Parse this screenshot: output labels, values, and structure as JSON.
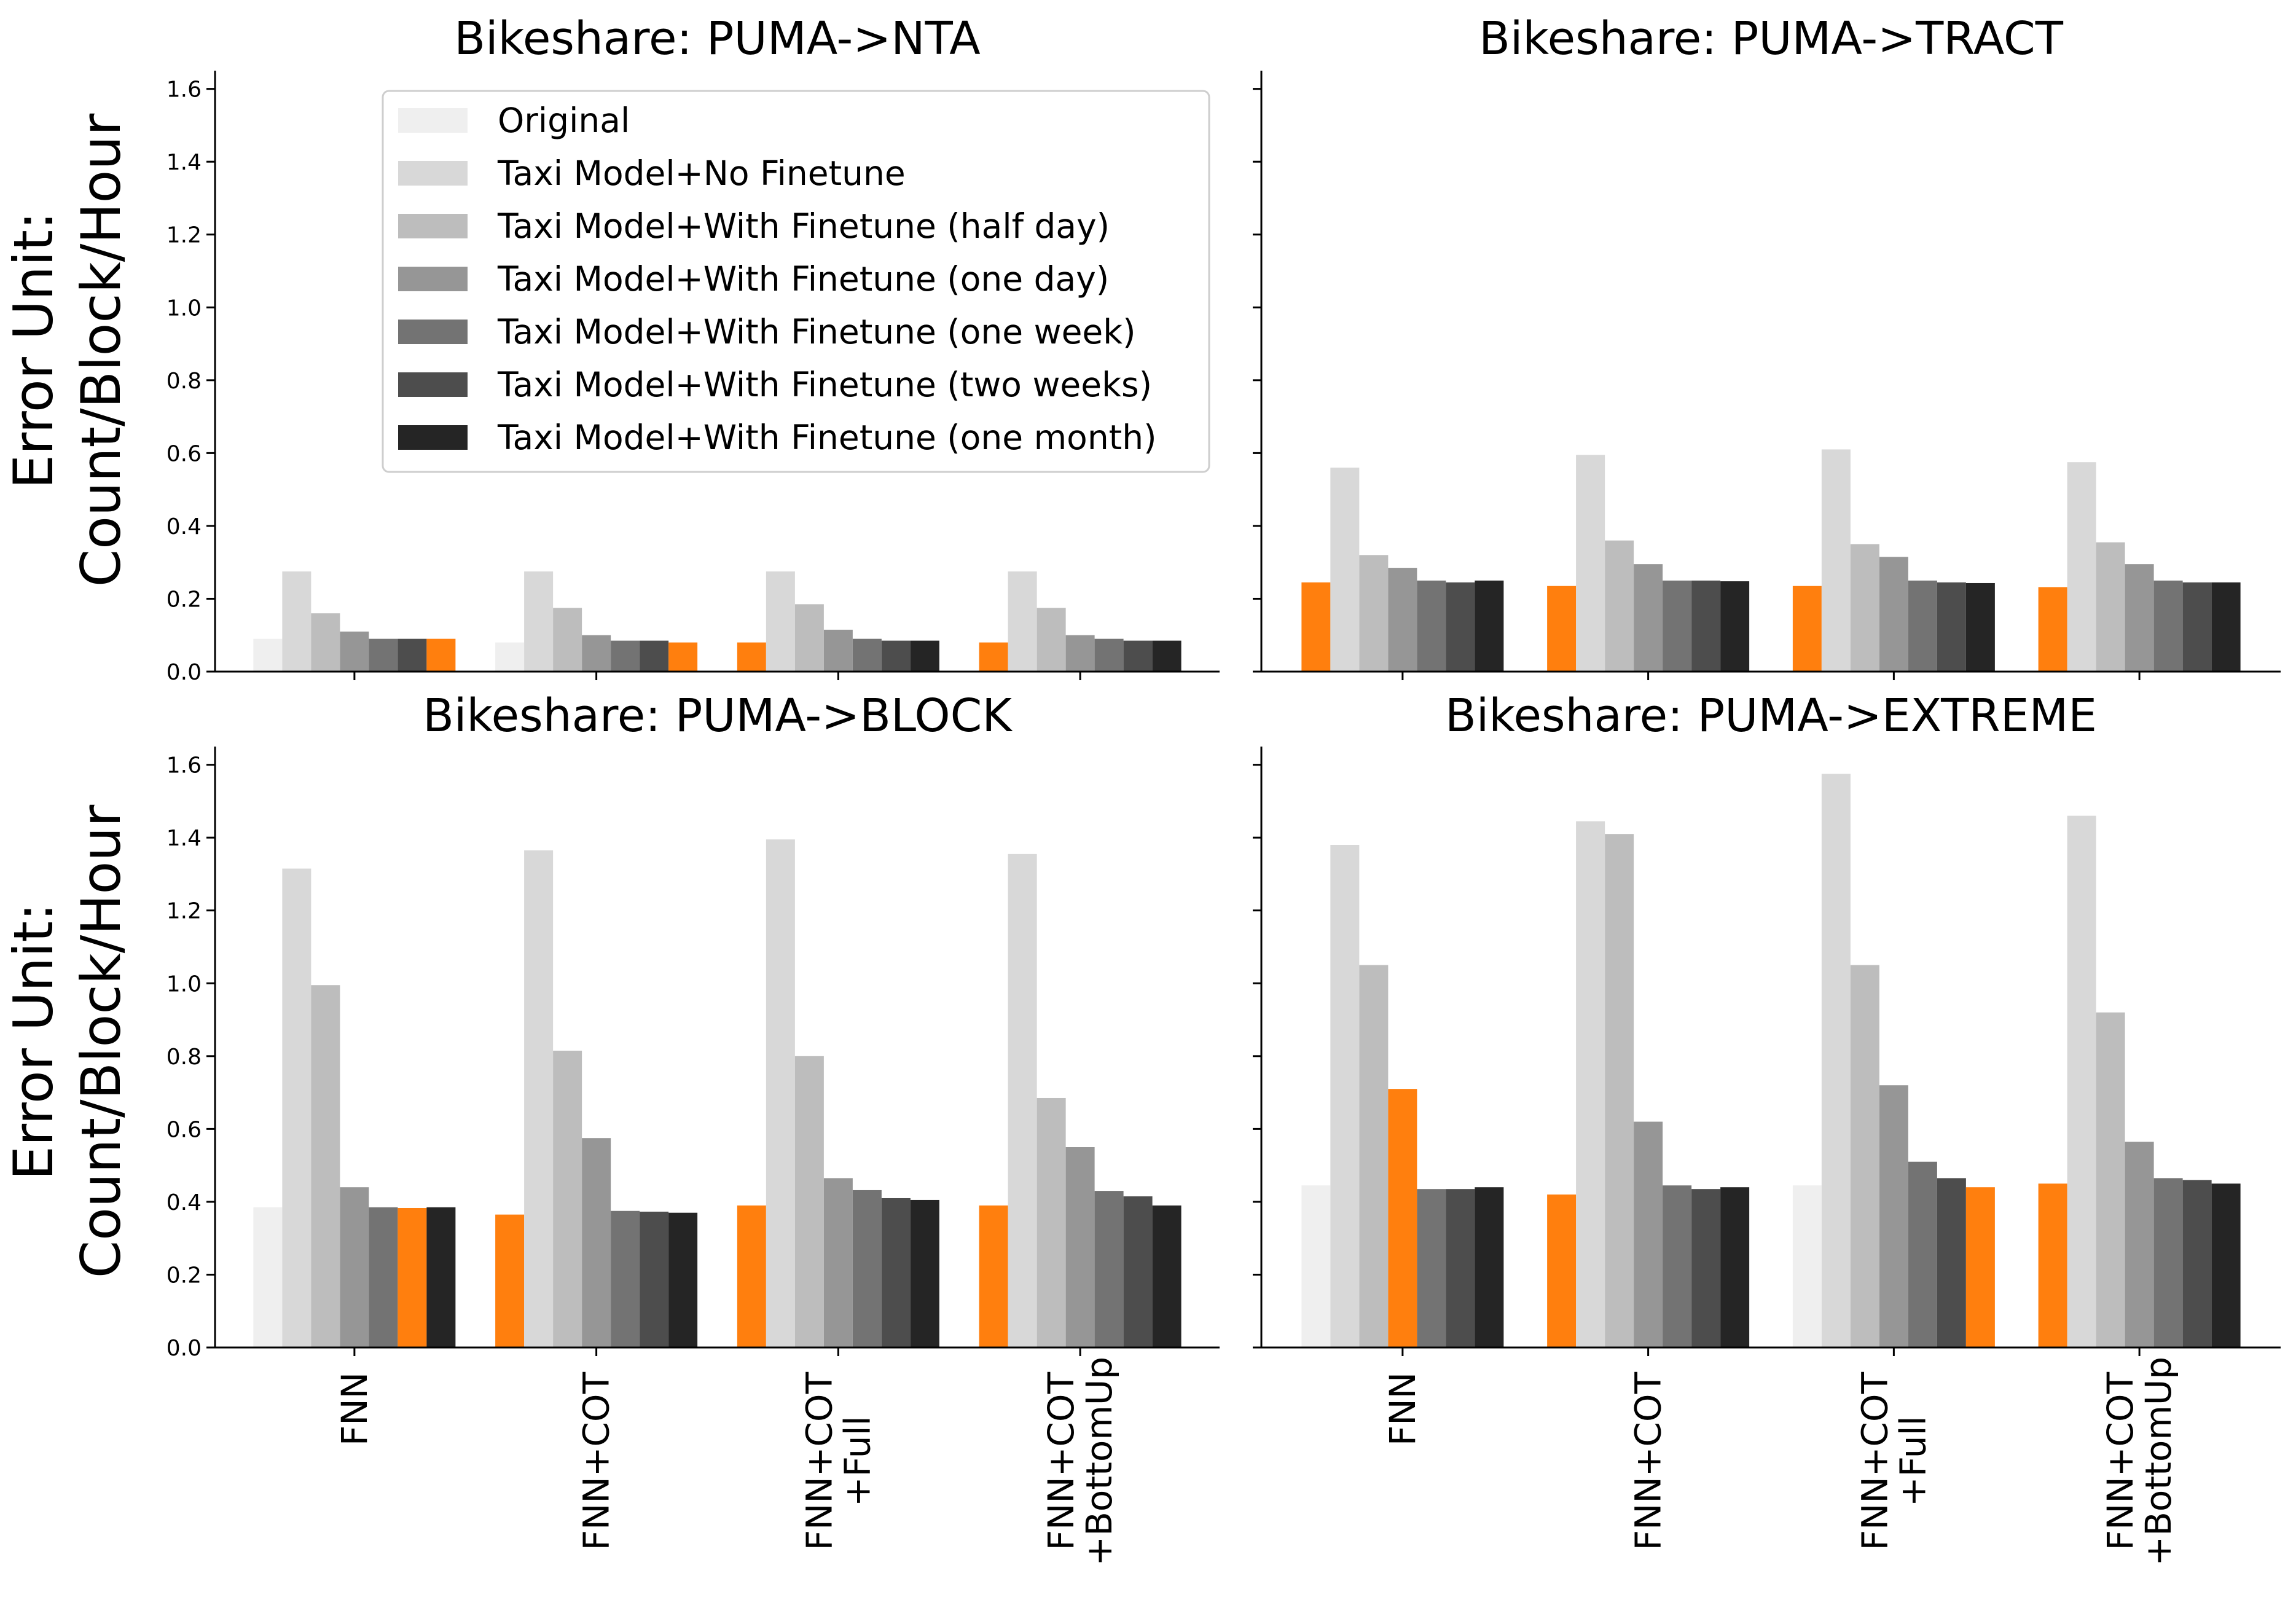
{
  "figure": {
    "ylabel_line1": "Error Unit:",
    "ylabel_line2": "Count/Block/Hour"
  },
  "legend": [
    {
      "label": "Original",
      "color": "#efefef"
    },
    {
      "label": "Taxi Model+No Finetune",
      "color": "#d8d8d8"
    },
    {
      "label": "Taxi Model+With Finetune (half day)",
      "color": "#bdbdbd"
    },
    {
      "label": "Taxi Model+With Finetune (one day)",
      "color": "#969696"
    },
    {
      "label": "Taxi Model+With Finetune (one week)",
      "color": "#737373"
    },
    {
      "label": "Taxi Model+With Finetune (two weeks)",
      "color": "#4d4d4d"
    },
    {
      "label": "Taxi Model+With Finetune (one month)",
      "color": "#252525"
    }
  ],
  "highlight_color": "#ff7f0e",
  "chart_data": [
    {
      "type": "bar",
      "title": "Bikeshare: PUMA->NTA",
      "categories": [
        "FNN",
        "FNN+COT",
        "FNN+COT\n+Full",
        "FNN+COT\n+BottomUp"
      ],
      "ylim": [
        0,
        1.65
      ],
      "yticks": [
        "0.0",
        "0.2",
        "0.4",
        "0.6",
        "0.8",
        "1.0",
        "1.2",
        "1.4",
        "1.6"
      ],
      "values": [
        [
          0.09,
          0.275,
          0.16,
          0.11,
          0.09,
          0.09,
          0.09
        ],
        [
          0.08,
          0.275,
          0.175,
          0.1,
          0.085,
          0.085,
          0.08
        ],
        [
          0.08,
          0.275,
          0.185,
          0.115,
          0.09,
          0.085,
          0.085
        ],
        [
          0.08,
          0.275,
          0.175,
          0.1,
          0.09,
          0.085,
          0.085
        ]
      ],
      "highlight_index": [
        6,
        6,
        0,
        0
      ]
    },
    {
      "type": "bar",
      "title": "Bikeshare: PUMA->TRACT",
      "categories": [
        "FNN",
        "FNN+COT",
        "FNN+COT\n+Full",
        "FNN+COT\n+BottomUp"
      ],
      "ylim": [
        0,
        1.65
      ],
      "yticks": [
        "0.0",
        "0.2",
        "0.4",
        "0.6",
        "0.8",
        "1.0",
        "1.2",
        "1.4",
        "1.6"
      ],
      "values": [
        [
          0.245,
          0.56,
          0.32,
          0.285,
          0.25,
          0.245,
          0.25
        ],
        [
          0.235,
          0.595,
          0.36,
          0.295,
          0.25,
          0.25,
          0.248
        ],
        [
          0.235,
          0.61,
          0.35,
          0.315,
          0.25,
          0.245,
          0.243
        ],
        [
          0.232,
          0.575,
          0.355,
          0.295,
          0.25,
          0.245,
          0.245
        ]
      ],
      "highlight_index": [
        0,
        0,
        0,
        0
      ]
    },
    {
      "type": "bar",
      "title": "Bikeshare: PUMA->BLOCK",
      "categories": [
        "FNN",
        "FNN+COT",
        "FNN+COT\n+Full",
        "FNN+COT\n+BottomUp"
      ],
      "ylim": [
        0,
        1.65
      ],
      "yticks": [
        "0.0",
        "0.2",
        "0.4",
        "0.6",
        "0.8",
        "1.0",
        "1.2",
        "1.4",
        "1.6"
      ],
      "values": [
        [
          0.385,
          1.315,
          0.995,
          0.44,
          0.385,
          0.383,
          0.385
        ],
        [
          0.365,
          1.365,
          0.815,
          0.575,
          0.375,
          0.373,
          0.37
        ],
        [
          0.39,
          1.395,
          0.8,
          0.465,
          0.432,
          0.41,
          0.405
        ],
        [
          0.39,
          1.355,
          0.685,
          0.55,
          0.43,
          0.415,
          0.39
        ]
      ],
      "highlight_index": [
        5,
        0,
        0,
        0
      ]
    },
    {
      "type": "bar",
      "title": "Bikeshare: PUMA->EXTREME",
      "categories": [
        "FNN",
        "FNN+COT",
        "FNN+COT\n+Full",
        "FNN+COT\n+BottomUp"
      ],
      "ylim": [
        0,
        1.65
      ],
      "yticks": [
        "0.0",
        "0.2",
        "0.4",
        "0.6",
        "0.8",
        "1.0",
        "1.2",
        "1.4",
        "1.6"
      ],
      "values": [
        [
          0.445,
          1.38,
          1.05,
          0.71,
          0.435,
          0.435,
          0.44
        ],
        [
          0.42,
          1.445,
          1.41,
          0.62,
          0.445,
          0.435,
          0.44
        ],
        [
          0.445,
          1.575,
          1.05,
          0.72,
          0.51,
          0.465,
          0.44
        ],
        [
          0.45,
          1.46,
          0.92,
          0.565,
          0.465,
          0.46,
          0.45
        ]
      ],
      "highlight_index": [
        3,
        0,
        6,
        0
      ]
    }
  ]
}
